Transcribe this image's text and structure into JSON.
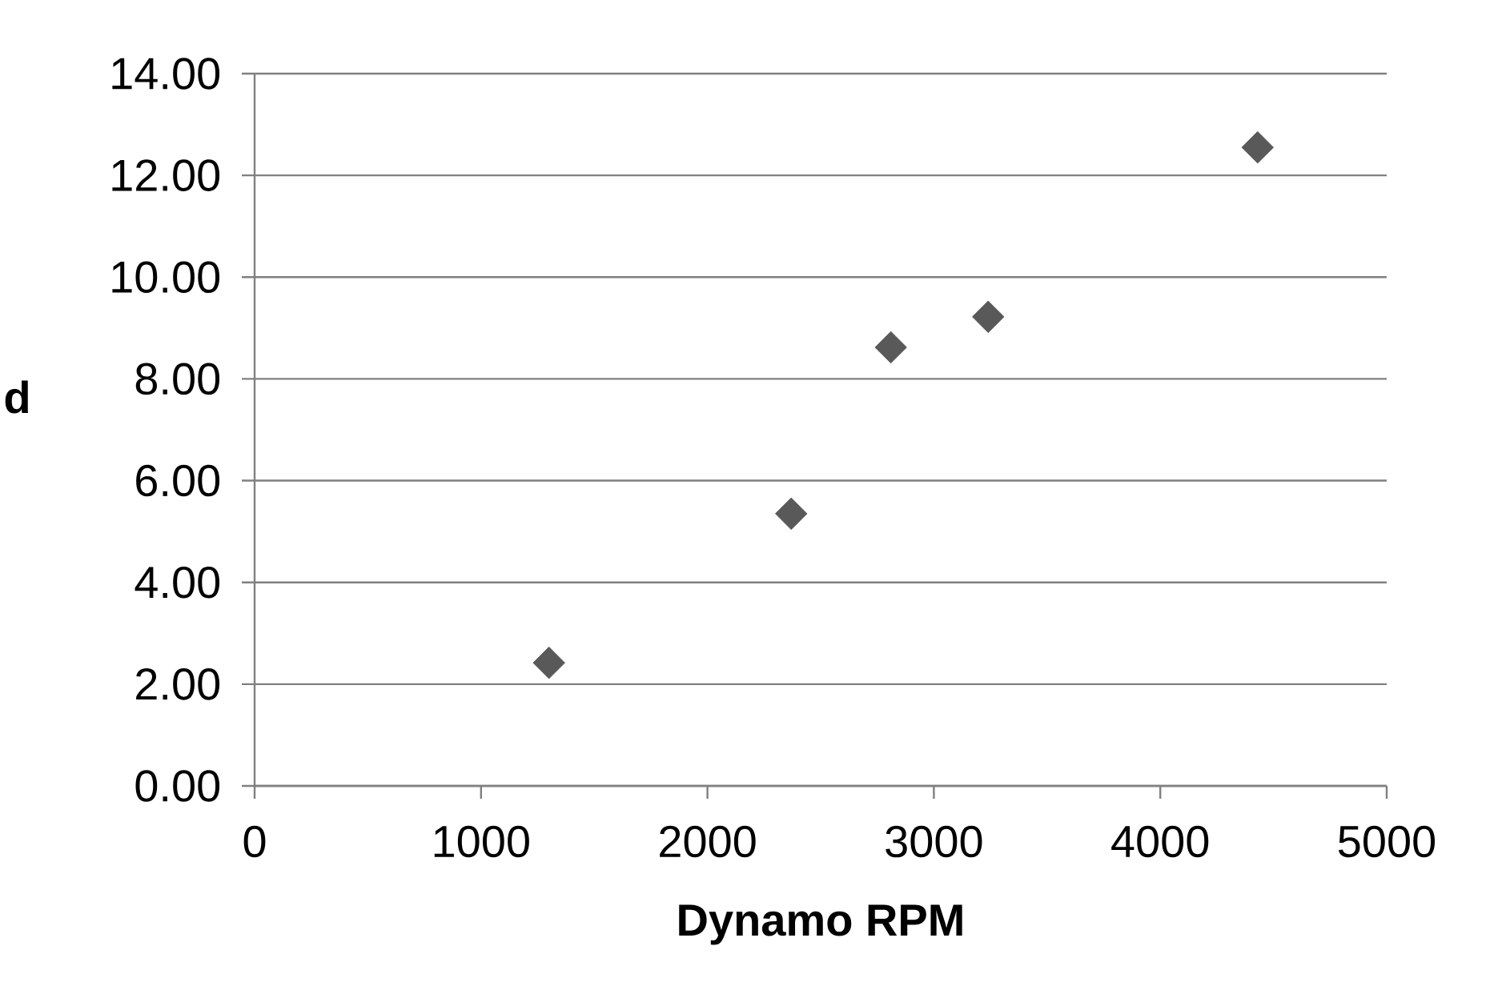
{
  "chart_data": {
    "type": "scatter",
    "xlabel": "Dynamo RPM",
    "ylabel": "d",
    "x": [
      1300,
      2370,
      2810,
      3240,
      4430
    ],
    "values": [
      2.42,
      5.35,
      8.62,
      9.22,
      12.55
    ],
    "color": "#595959",
    "marker": "diamond",
    "grid": "y",
    "xlim": [
      0,
      5000
    ],
    "xticks": [
      0,
      1000,
      2000,
      3000,
      4000,
      5000
    ],
    "ylim": [
      0,
      14
    ],
    "yticks": [
      {
        "value": 0,
        "label": "0.00"
      },
      {
        "value": 2,
        "label": "2.00"
      },
      {
        "value": 4,
        "label": "4.00"
      },
      {
        "value": 6,
        "label": "6.00"
      },
      {
        "value": 8,
        "label": "8.00"
      },
      {
        "value": 10,
        "label": "10.00"
      },
      {
        "value": 12,
        "label": "12.00"
      },
      {
        "value": 14,
        "label": "14.00"
      }
    ]
  }
}
